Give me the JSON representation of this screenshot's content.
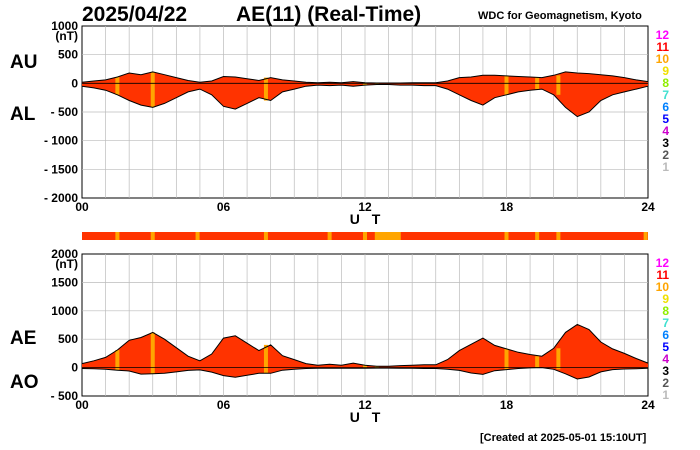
{
  "header": {
    "date": "2025/04/22",
    "title": "AE(11) (Real-Time)",
    "source": "WDC for Geomagnetism, Kyoto"
  },
  "footer": "[Created at 2025-05-01 15:10UT]",
  "legend": {
    "counts": [
      "12",
      "11",
      "10",
      "9",
      "8",
      "7",
      "6",
      "5",
      "4",
      "3",
      "2",
      "1"
    ],
    "colors": [
      "#ff00ff",
      "#ff0000",
      "#ffa500",
      "#f0e000",
      "#90ee00",
      "#40e0d0",
      "#0080ff",
      "#0000ff",
      "#cc00cc",
      "#000000",
      "#555555",
      "#bbbbbb"
    ]
  },
  "colors": {
    "fill": "#ff3300",
    "partial": "#ffa500"
  },
  "chart_data": [
    {
      "type": "area",
      "panel": "AU/AL",
      "labels": [
        "AU",
        "AL"
      ],
      "unit": "(nT)",
      "xlabel": "U T",
      "x_ticks": [
        "00",
        "06",
        "12",
        "18",
        "24"
      ],
      "xlim": [
        0,
        24
      ],
      "y_ticks": [
        "1000",
        "500",
        "0",
        "- 500",
        "- 1000",
        "- 1500",
        "- 2000"
      ],
      "ylim": [
        -2000,
        1000
      ],
      "x": [
        0,
        0.5,
        1,
        1.5,
        2,
        2.5,
        3,
        3.5,
        4,
        4.5,
        5,
        5.5,
        6,
        6.5,
        7,
        7.5,
        8,
        8.5,
        9,
        9.5,
        10,
        10.5,
        11,
        11.5,
        12,
        12.5,
        13,
        13.5,
        14,
        14.5,
        15,
        15.5,
        16,
        16.5,
        17,
        17.5,
        18,
        18.5,
        19,
        19.5,
        20,
        20.5,
        21,
        21.5,
        22,
        22.5,
        23,
        23.5,
        24
      ],
      "series": [
        {
          "name": "AU",
          "values": [
            20,
            40,
            60,
            110,
            180,
            150,
            200,
            150,
            100,
            50,
            20,
            40,
            120,
            110,
            80,
            50,
            100,
            60,
            40,
            20,
            10,
            20,
            10,
            30,
            10,
            5,
            5,
            5,
            10,
            10,
            10,
            40,
            100,
            110,
            140,
            140,
            130,
            120,
            110,
            100,
            140,
            200,
            180,
            170,
            150,
            130,
            100,
            60,
            30
          ]
        },
        {
          "name": "AL",
          "values": [
            -50,
            -80,
            -120,
            -200,
            -300,
            -380,
            -420,
            -350,
            -250,
            -150,
            -100,
            -200,
            -400,
            -450,
            -350,
            -250,
            -300,
            -150,
            -100,
            -50,
            -30,
            -40,
            -30,
            -50,
            -30,
            -20,
            -20,
            -30,
            -30,
            -40,
            -40,
            -100,
            -200,
            -300,
            -380,
            -250,
            -200,
            -150,
            -120,
            -100,
            -200,
            -420,
            -580,
            -500,
            -300,
            -200,
            -150,
            -100,
            -50
          ]
        }
      ],
      "partial_hours": [
        1.5,
        3.0,
        7.8,
        12.0,
        12.5,
        18.0,
        19.3,
        20.2
      ]
    },
    {
      "type": "area",
      "panel": "AE/AO",
      "labels": [
        "AE",
        "AO"
      ],
      "unit": "(nT)",
      "xlabel": "U T",
      "x_ticks": [
        "00",
        "06",
        "12",
        "18",
        "24"
      ],
      "xlim": [
        0,
        24
      ],
      "y_ticks": [
        "2000",
        "1500",
        "1000",
        "500",
        "0",
        "- 500"
      ],
      "ylim": [
        -500,
        2000
      ],
      "x": [
        0,
        0.5,
        1,
        1.5,
        2,
        2.5,
        3,
        3.5,
        4,
        4.5,
        5,
        5.5,
        6,
        6.5,
        7,
        7.5,
        8,
        8.5,
        9,
        9.5,
        10,
        10.5,
        11,
        11.5,
        12,
        12.5,
        13,
        13.5,
        14,
        14.5,
        15,
        15.5,
        16,
        16.5,
        17,
        17.5,
        18,
        18.5,
        19,
        19.5,
        20,
        20.5,
        21,
        21.5,
        22,
        22.5,
        23,
        23.5,
        24
      ],
      "series": [
        {
          "name": "AE",
          "values": [
            70,
            120,
            180,
            310,
            480,
            530,
            620,
            500,
            350,
            200,
            120,
            240,
            520,
            560,
            430,
            300,
            400,
            210,
            140,
            70,
            40,
            60,
            40,
            80,
            40,
            25,
            25,
            35,
            40,
            50,
            50,
            140,
            300,
            410,
            520,
            390,
            330,
            270,
            230,
            200,
            340,
            620,
            760,
            670,
            450,
            330,
            250,
            160,
            80
          ]
        },
        {
          "name": "AO",
          "values": [
            -15,
            -20,
            -30,
            -45,
            -60,
            -115,
            -110,
            -100,
            -75,
            -50,
            -40,
            -80,
            -140,
            -170,
            -135,
            -100,
            -100,
            -45,
            -30,
            -15,
            -10,
            -10,
            -10,
            -10,
            -10,
            -8,
            -8,
            -12,
            -10,
            -15,
            -15,
            -30,
            -50,
            -95,
            -120,
            -55,
            -35,
            -15,
            -5,
            0,
            -30,
            -110,
            -200,
            -165,
            -75,
            -35,
            -25,
            -20,
            -10
          ]
        }
      ],
      "partial_hours": [
        1.5,
        3.0,
        7.8,
        12.0,
        12.5,
        18.0,
        19.3,
        20.2
      ]
    },
    {
      "type": "bar",
      "panel": "station-count",
      "partial_hours": [
        1.5,
        3.0,
        4.9,
        7.8,
        10.5,
        12.0,
        12.5,
        13.0,
        18.0,
        19.3,
        20.2,
        23.9
      ]
    }
  ]
}
